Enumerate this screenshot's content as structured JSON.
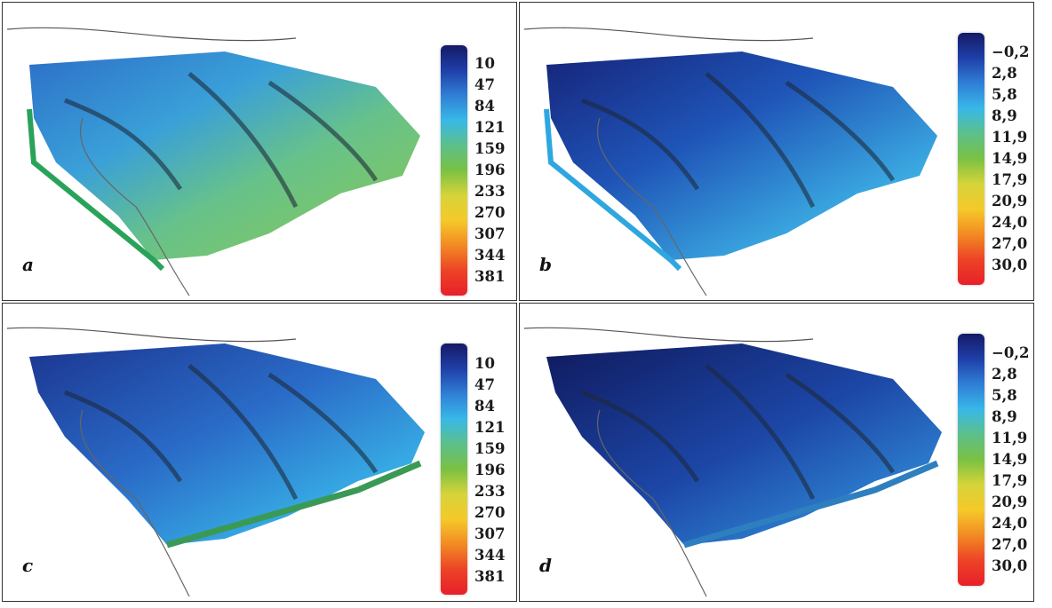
{
  "panels": [
    {
      "label": "a",
      "colorbar": {
        "ticks": [
          "10",
          "47",
          "84",
          "121",
          "159",
          "196",
          "233",
          "270",
          "307",
          "344",
          "381"
        ]
      }
    },
    {
      "label": "b",
      "colorbar": {
        "ticks": [
          "−0,2",
          "2,8",
          "5,8",
          "8,9",
          "11,9",
          "14,9",
          "17,9",
          "20,9",
          "24,0",
          "27,0",
          "30,0"
        ]
      }
    },
    {
      "label": "c",
      "colorbar": {
        "ticks": [
          "10",
          "47",
          "84",
          "121",
          "159",
          "196",
          "233",
          "270",
          "307",
          "344",
          "381"
        ]
      }
    },
    {
      "label": "d",
      "colorbar": {
        "ticks": [
          "−0,2",
          "2,8",
          "5,8",
          "8,9",
          "11,9",
          "14,9",
          "17,9",
          "20,9",
          "24,0",
          "27,0",
          "30,0"
        ]
      }
    }
  ],
  "colors": {
    "scale": [
      "#141a66",
      "#1f3fa8",
      "#2f7fd6",
      "#38b8e8",
      "#5cc08a",
      "#7ac143",
      "#d6d43a",
      "#f5c92a",
      "#f28a23",
      "#ec4326",
      "#e8202a"
    ]
  }
}
